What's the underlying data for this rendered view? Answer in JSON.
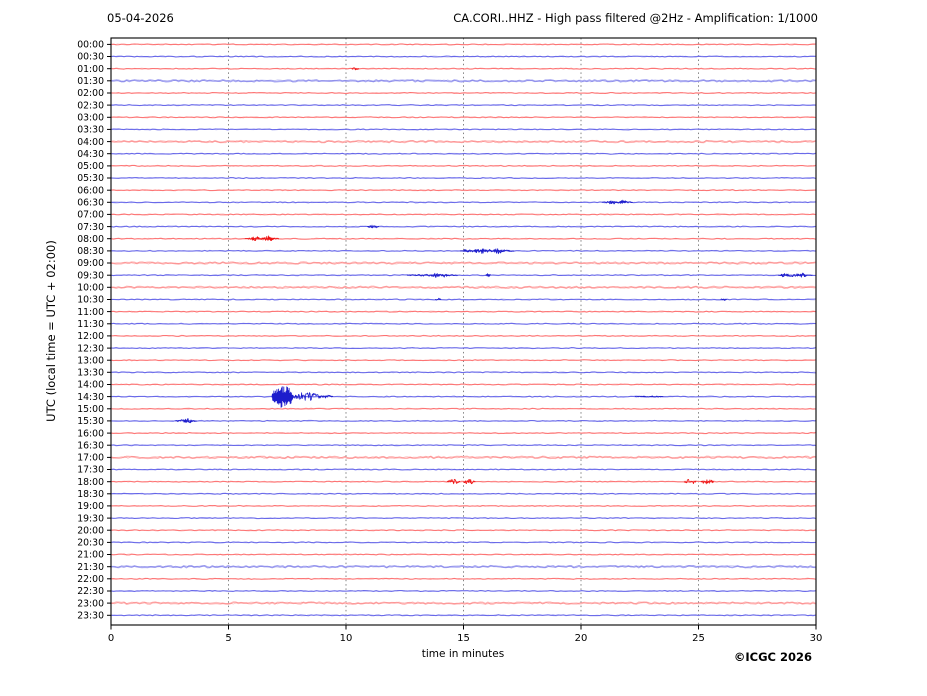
{
  "header": {
    "date": "05-04-2026",
    "title": "CA.CORI..HHZ - High pass filtered @2Hz - Amplification: 1/1000"
  },
  "footer": {
    "copyright": "©ICGC 2026"
  },
  "chart_data": {
    "type": "line",
    "subtype": "helicorder-seismogram",
    "title": "CA.CORI..HHZ - High pass filtered @2Hz - Amplification: 1/1000",
    "xlabel": "time in minutes",
    "ylabel": "UTC (local time = UTC + 02:00)",
    "xlim": [
      0,
      30
    ],
    "x_ticks": [
      0,
      5,
      10,
      15,
      20,
      25,
      30
    ],
    "grid_minutes": [
      5,
      10,
      15,
      20,
      25
    ],
    "grid_on": true,
    "minutes_per_row": 30,
    "row_labels": [
      "00:00",
      "00:30",
      "01:00",
      "01:30",
      "02:00",
      "02:30",
      "03:00",
      "03:30",
      "04:00",
      "04:30",
      "05:00",
      "05:30",
      "06:00",
      "06:30",
      "07:00",
      "07:30",
      "08:00",
      "08:30",
      "09:00",
      "09:30",
      "10:00",
      "10:30",
      "11:00",
      "11:30",
      "12:00",
      "12:30",
      "13:00",
      "13:30",
      "14:00",
      "14:30",
      "15:00",
      "15:30",
      "16:00",
      "16:30",
      "17:00",
      "17:30",
      "18:00",
      "18:30",
      "19:00",
      "19:30",
      "20:00",
      "20:30",
      "21:00",
      "21:30",
      "22:00",
      "22:30",
      "23:00",
      "23:30"
    ],
    "row_color_cycle": [
      "red",
      "blue"
    ],
    "fuzzy_rows": [
      "01:30",
      "04:00",
      "09:00",
      "10:00",
      "17:00",
      "21:30",
      "23:00"
    ],
    "colors": {
      "red_base": "#ff8888",
      "red_light": "#ffb2b2",
      "red_strong": "#ee1111",
      "blue_base": "#7878ee",
      "blue_light": "#a8a8f2",
      "blue_strong": "#1d1dcc",
      "grid": "#777777",
      "axis": "#000000"
    },
    "noise_amp": 0.45,
    "events": [
      {
        "row": "01:00",
        "start": 10.25,
        "end": 10.55,
        "amp": 1.5
      },
      {
        "row": "06:30",
        "start": 20.9,
        "end": 22.2,
        "amp": 1.3
      },
      {
        "row": "06:30",
        "start": 21.15,
        "end": 21.5,
        "amp": 2.3
      },
      {
        "row": "06:30",
        "start": 21.65,
        "end": 21.95,
        "amp": 2.3
      },
      {
        "row": "07:30",
        "start": 10.9,
        "end": 11.4,
        "amp": 1.6
      },
      {
        "row": "08:00",
        "start": 5.7,
        "end": 7.15,
        "amp": 1.5
      },
      {
        "row": "08:00",
        "start": 5.95,
        "end": 6.35,
        "amp": 2.7
      },
      {
        "row": "08:00",
        "start": 6.5,
        "end": 6.95,
        "amp": 2.9
      },
      {
        "row": "08:30",
        "start": 14.85,
        "end": 17.15,
        "amp": 1.5
      },
      {
        "row": "08:30",
        "start": 15.0,
        "end": 15.25,
        "amp": 2.4
      },
      {
        "row": "08:30",
        "start": 15.45,
        "end": 16.0,
        "amp": 2.8
      },
      {
        "row": "08:30",
        "start": 16.3,
        "end": 16.75,
        "amp": 3.0
      },
      {
        "row": "09:30",
        "start": 12.6,
        "end": 14.75,
        "amp": 1.1
      },
      {
        "row": "09:30",
        "start": 13.6,
        "end": 14.0,
        "amp": 2.3
      },
      {
        "row": "09:30",
        "start": 14.05,
        "end": 14.35,
        "amp": 2.5
      },
      {
        "row": "09:30",
        "start": 15.95,
        "end": 16.15,
        "amp": 1.7
      },
      {
        "row": "09:30",
        "start": 28.4,
        "end": 29.85,
        "amp": 1.5
      },
      {
        "row": "09:30",
        "start": 28.5,
        "end": 28.85,
        "amp": 2.3
      },
      {
        "row": "09:30",
        "start": 29.2,
        "end": 29.6,
        "amp": 2.3
      },
      {
        "row": "10:30",
        "start": 13.8,
        "end": 14.05,
        "amp": 1.7
      },
      {
        "row": "10:30",
        "start": 25.95,
        "end": 26.2,
        "amp": 1.1
      },
      {
        "row": "14:30",
        "start": 6.85,
        "end": 7.75,
        "amp": 11.0,
        "spiky": true
      },
      {
        "row": "14:30",
        "start": 7.7,
        "end": 8.95,
        "amp": 4.2
      },
      {
        "row": "14:30",
        "start": 8.9,
        "end": 9.45,
        "amp": 1.6
      },
      {
        "row": "14:30",
        "start": 22.3,
        "end": 23.5,
        "amp": 0.8
      },
      {
        "row": "15:30",
        "start": 2.75,
        "end": 3.65,
        "amp": 1.5
      },
      {
        "row": "15:30",
        "start": 3.1,
        "end": 3.45,
        "amp": 2.8
      },
      {
        "row": "18:00",
        "start": 14.3,
        "end": 14.85,
        "amp": 2.5
      },
      {
        "row": "18:00",
        "start": 15.0,
        "end": 15.5,
        "amp": 2.6
      },
      {
        "row": "18:00",
        "start": 24.4,
        "end": 24.9,
        "amp": 2.6
      },
      {
        "row": "18:00",
        "start": 25.1,
        "end": 25.65,
        "amp": 2.4
      }
    ]
  }
}
